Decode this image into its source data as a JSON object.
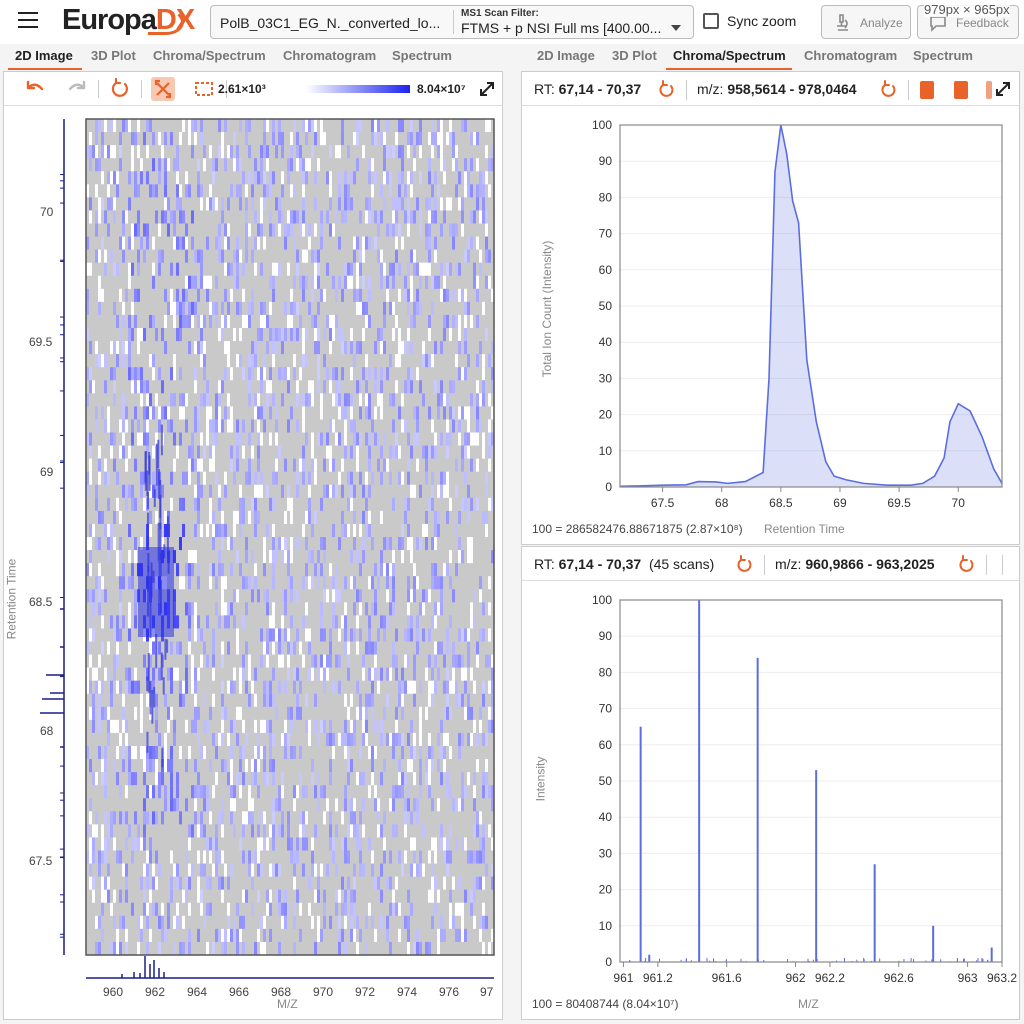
{
  "header": {
    "logo_main": "Europa",
    "logo_accent": "DX",
    "file_name": "PolB_03C1_EG_N._converted_lo...",
    "scan_filter_label": "MS1 Scan Filter:",
    "scan_filter_value": "FTMS + p NSI Full ms [400.00...",
    "sync_zoom_label": "Sync zoom",
    "analyze_label": "Analyze",
    "feedback_label": "Feedback",
    "dims_overlay": "979px × 965px"
  },
  "left_tabs": [
    {
      "label": "2D Image",
      "active": true
    },
    {
      "label": "3D Plot",
      "active": false
    },
    {
      "label": "Chroma/Spectrum",
      "active": false
    },
    {
      "label": "Chromatogram",
      "active": false
    },
    {
      "label": "Spectrum",
      "active": false
    }
  ],
  "right_tabs": [
    {
      "label": "2D Image",
      "active": false
    },
    {
      "label": "3D Plot",
      "active": false
    },
    {
      "label": "Chroma/Spectrum",
      "active": true
    },
    {
      "label": "Chromatogram",
      "active": false
    },
    {
      "label": "Spectrum",
      "active": false
    }
  ],
  "image_panel": {
    "colorbar_min": "2.61×10³",
    "colorbar_max": "8.04×10⁷",
    "colorbar_colors": [
      "#ffffff",
      "#1c23ee"
    ],
    "ylabel": "Retention Time",
    "xlabel": "M/Z",
    "y_ticks": [
      "70",
      "69.5",
      "69",
      "68.5",
      "68",
      "67.5"
    ],
    "x_ticks": [
      "960",
      "962",
      "964",
      "966",
      "968",
      "970",
      "972",
      "974",
      "976",
      "97"
    ]
  },
  "chroma_panel": {
    "rt_label": "RT:",
    "rt_range": "67,14 - 70,37",
    "mz_label": "m/z:",
    "mz_range": "958,5614 - 978,0464",
    "footer": "100 = 286582476.88671875 (2.87×10⁸)"
  },
  "spectrum_panel": {
    "rt_label": "RT:",
    "rt_range": "67,14 - 70,37",
    "scans": "(45 scans)",
    "mz_label": "m/z:",
    "mz_range": "960,9866 - 963,2025",
    "footer": "100 = 80408744 (8.04×10⁷)"
  },
  "chart_data": [
    {
      "type": "area",
      "xlabel": "Retention Time",
      "ylabel": "Total Ion Count (Intensity)",
      "xlim": [
        67.14,
        70.37
      ],
      "ylim": [
        0,
        100
      ],
      "x_ticks": [
        "67.5",
        "68",
        "68.5",
        "69",
        "69.5",
        "70"
      ],
      "y_ticks": [
        "0",
        "10",
        "20",
        "30",
        "40",
        "50",
        "60",
        "70",
        "80",
        "90",
        "100"
      ],
      "series": [
        {
          "color": "#5b6ee0",
          "x": [
            67.14,
            67.3,
            67.5,
            67.7,
            67.8,
            67.95,
            68.05,
            68.2,
            68.35,
            68.4,
            68.45,
            68.5,
            68.55,
            68.6,
            68.65,
            68.72,
            68.8,
            68.88,
            68.95,
            69.05,
            69.2,
            69.4,
            69.6,
            69.7,
            69.8,
            69.88,
            69.93,
            70.0,
            70.1,
            70.2,
            70.3,
            70.37
          ],
          "y": [
            0.2,
            0.3,
            0.5,
            0.6,
            1.5,
            1.4,
            1.0,
            1.5,
            4.0,
            30.0,
            87.0,
            100.0,
            92.0,
            79.0,
            73.0,
            35.0,
            18.0,
            7.0,
            3.0,
            2.0,
            1.0,
            0.5,
            0.5,
            1.0,
            3.0,
            8.0,
            18.0,
            23.0,
            21.0,
            14.0,
            5.0,
            1.0
          ]
        }
      ]
    },
    {
      "type": "bar",
      "xlabel": "M/Z",
      "ylabel": "Intensity",
      "xlim": [
        960.98,
        963.2
      ],
      "ylim": [
        0,
        100
      ],
      "x_ticks": [
        "961",
        "961.2",
        "961.6",
        "962",
        "962.2",
        "962.6",
        "963",
        "963.2"
      ],
      "y_ticks": [
        "0",
        "10",
        "20",
        "30",
        "40",
        "50",
        "60",
        "70",
        "80",
        "90",
        "100"
      ],
      "series": [
        {
          "color": "#5b6ee0",
          "x": [
            961.1,
            961.15,
            961.44,
            961.78,
            962.12,
            962.46,
            962.8,
            963.14
          ],
          "y": [
            65,
            2,
            100,
            84,
            53,
            27,
            10,
            4
          ]
        }
      ]
    }
  ]
}
